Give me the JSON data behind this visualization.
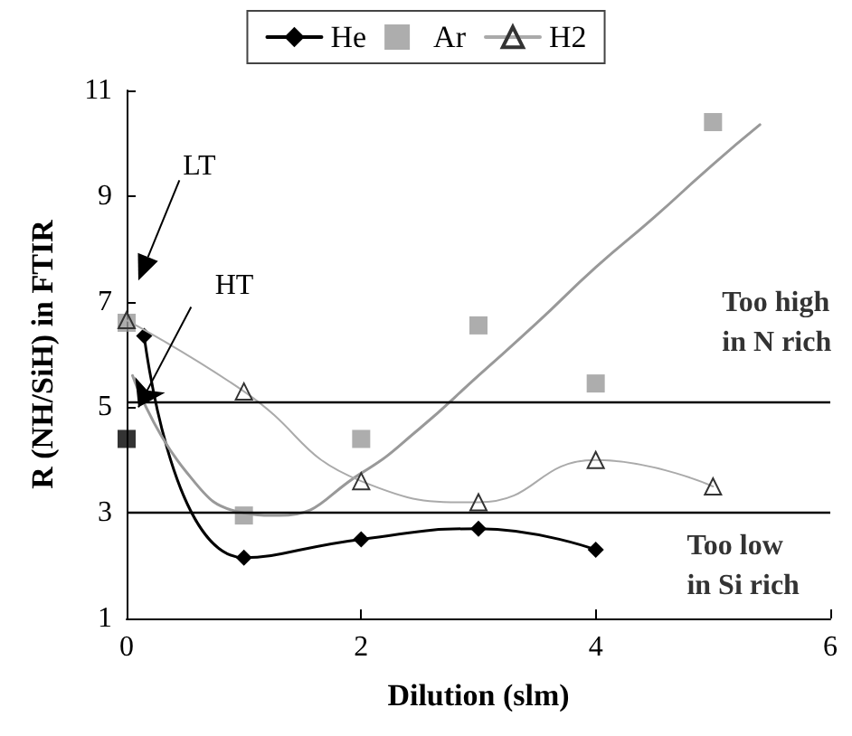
{
  "chart_data": {
    "type": "line",
    "xlabel": "Dilution (slm)",
    "ylabel": "R (NH/SiH) in FTIR",
    "xlim": [
      0,
      6
    ],
    "xticks": [
      0,
      2,
      4,
      6
    ],
    "ylim": [
      1,
      11
    ],
    "yticks": [
      1,
      3,
      5,
      7,
      9,
      11
    ],
    "grid": false,
    "legend": "top",
    "series": [
      {
        "name": "He",
        "color": "#000000",
        "marker": "diamond",
        "x": [
          0.15,
          1,
          2,
          3,
          4
        ],
        "values": [
          6.35,
          2.15,
          2.5,
          2.7,
          2.3
        ]
      },
      {
        "name": "Ar",
        "type": "scatter",
        "color": "#999999",
        "marker": "square",
        "x": [
          0,
          1,
          2,
          3,
          4,
          5
        ],
        "values": [
          6.6,
          2.95,
          4.4,
          6.55,
          5.45,
          10.4
        ]
      },
      {
        "name": "H2",
        "color": "#aaaaaa",
        "marker": "triangle",
        "x": [
          0,
          1,
          2,
          3,
          4,
          5
        ],
        "values": [
          6.65,
          5.3,
          3.6,
          3.2,
          4.0,
          3.5
        ]
      },
      {
        "type": "scatter",
        "color": "#000000",
        "marker": "square",
        "x": [
          0
        ],
        "values": [
          4.4
        ]
      },
      {
        "type": "line",
        "color": "#999999",
        "marker": "none",
        "x": [
          0.05,
          0.5,
          1,
          1.3,
          2,
          2.5,
          3,
          3.5,
          4,
          4.5,
          5,
          5.4
        ],
        "values": [
          5.6,
          3.8,
          3.0,
          2.95,
          3.75,
          4.6,
          5.6,
          6.6,
          7.65,
          8.6,
          9.6,
          10.35
        ]
      }
    ],
    "ref_lines": [
      {
        "axis": "y",
        "value": 5.1,
        "color": "#000000"
      },
      {
        "axis": "y",
        "value": 3.0,
        "color": "#000000"
      }
    ],
    "annotations": [
      "LT",
      {
        "text": "HT",
        "x": 0.1,
        "y": 5.0
      },
      "Too high\nin N rich",
      "Too low\nin Si rich"
    ]
  }
}
